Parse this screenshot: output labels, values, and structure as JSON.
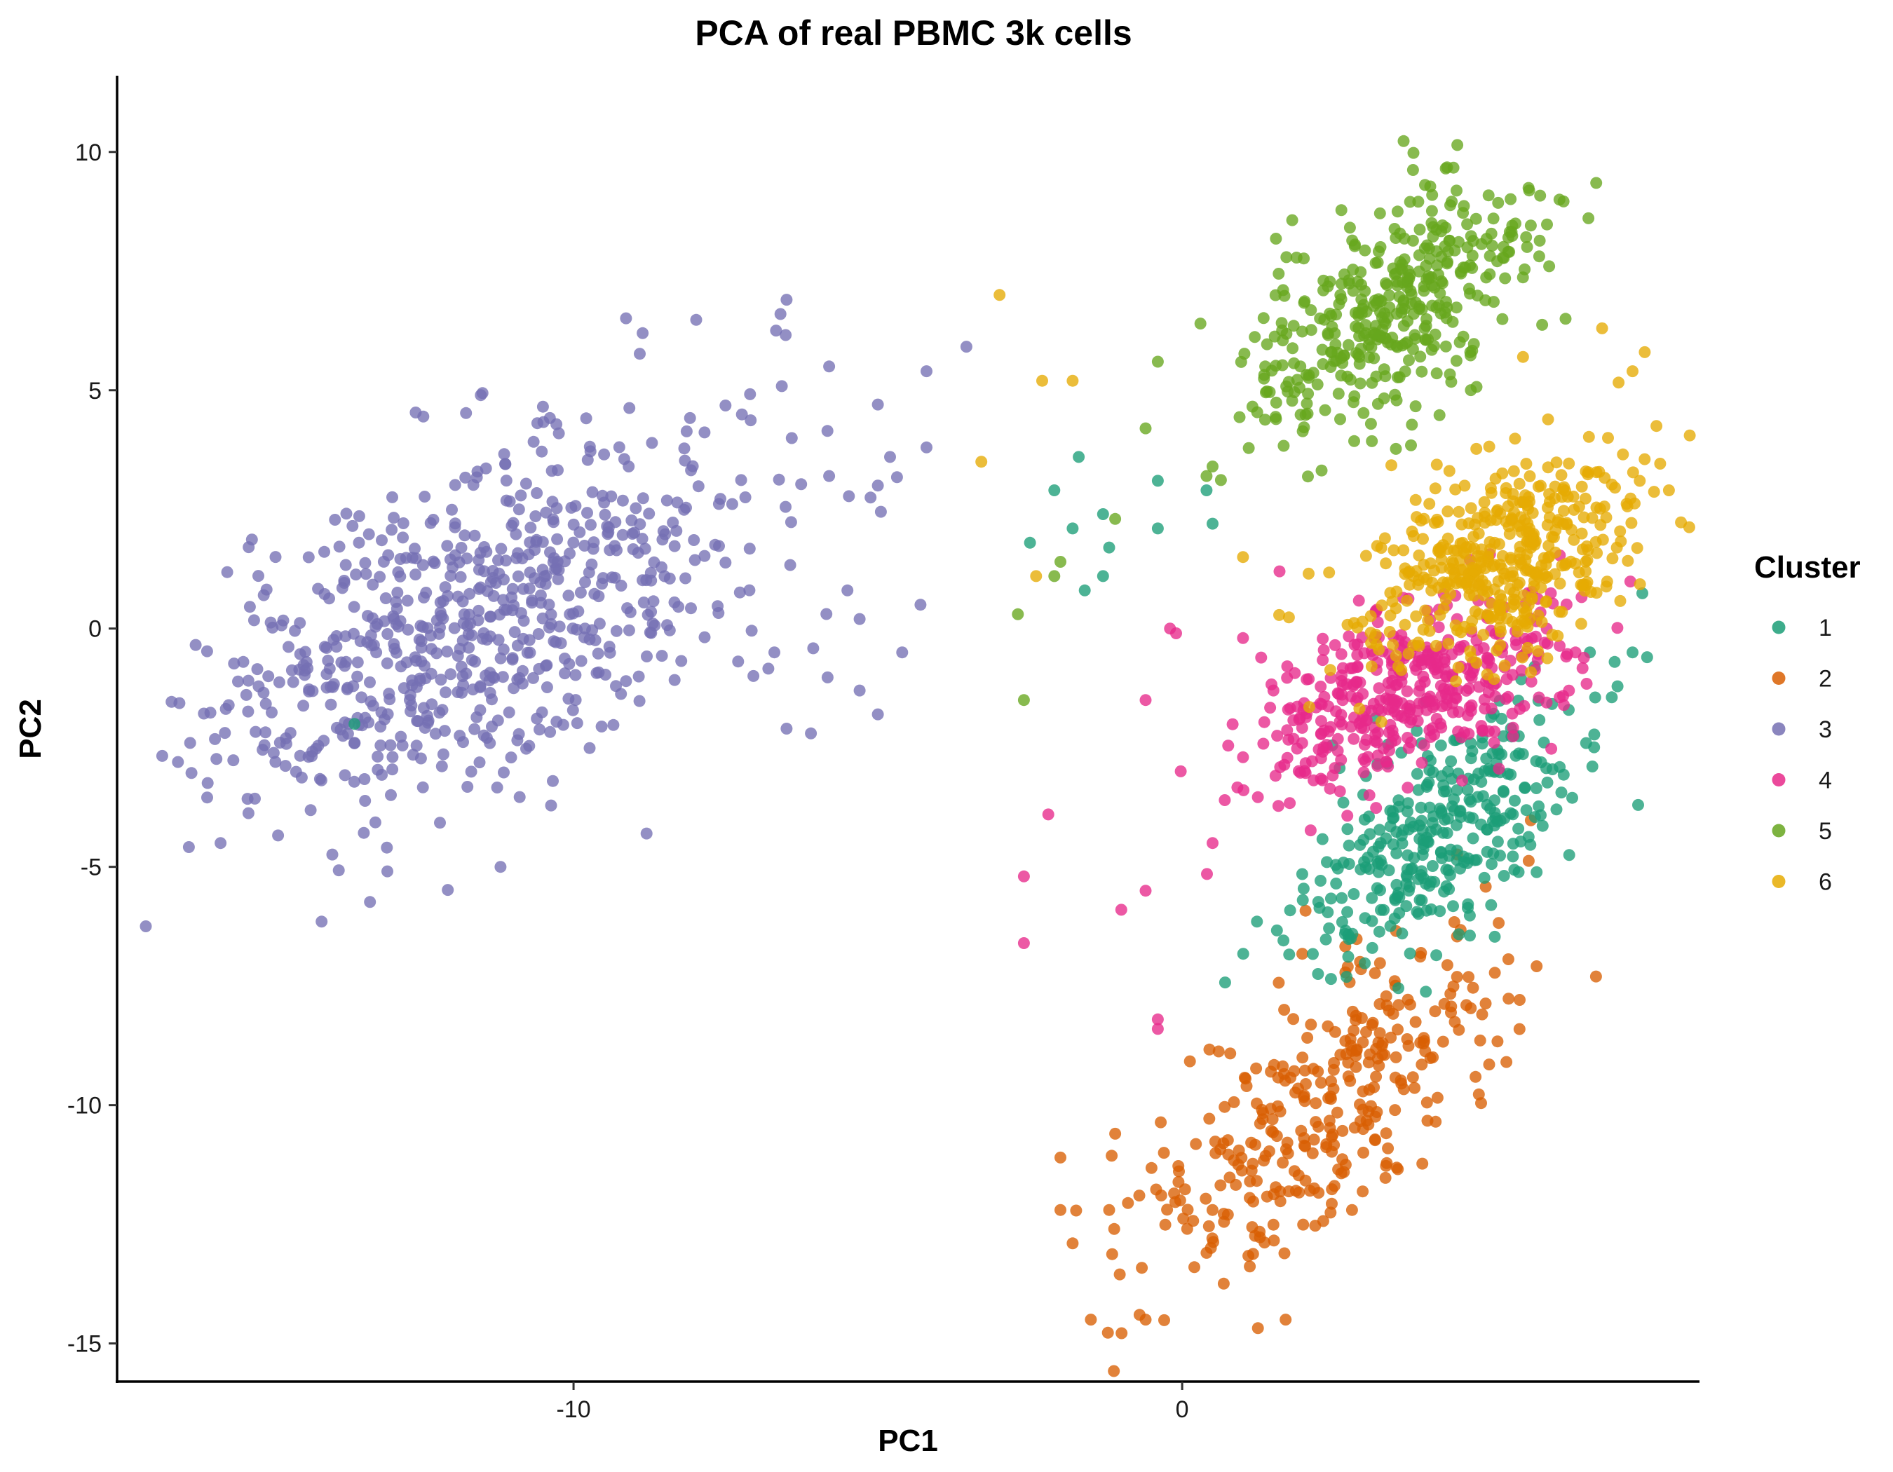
{
  "chart_data": {
    "type": "scatter",
    "title": "PCA of real PBMC 3k cells",
    "xlabel": "PC1",
    "ylabel": "PC2",
    "xlim": [
      -17.5,
      8.5
    ],
    "ylim": [
      -15.8,
      11.6
    ],
    "x_ticks": [
      -10,
      0
    ],
    "y_ticks": [
      10,
      5,
      0,
      -5,
      -10,
      -15
    ],
    "grid": false,
    "legend": {
      "title": "Cluster",
      "position": "right"
    },
    "series": [
      {
        "name": "1",
        "color": "#1b9e77",
        "n": 340,
        "center": [
          4.3,
          -4.2
        ],
        "sd": [
          1.1,
          1.4
        ],
        "rho": 0.55,
        "extra_points": [
          [
            -1.7,
            3.6
          ],
          [
            -2.1,
            2.9
          ],
          [
            -1.8,
            2.1
          ],
          [
            -1.3,
            2.4
          ],
          [
            -0.4,
            3.1
          ],
          [
            -0.4,
            2.1
          ],
          [
            0.5,
            2.2
          ],
          [
            0.4,
            2.9
          ],
          [
            -2.5,
            1.8
          ],
          [
            -1.6,
            0.8
          ],
          [
            -1.2,
            1.7
          ],
          [
            -1.3,
            1.1
          ],
          [
            6.7,
            -0.5
          ],
          [
            7.4,
            -0.5
          ],
          [
            -13.6,
            -2.0
          ]
        ]
      },
      {
        "name": "2",
        "color": "#d95f02",
        "n": 330,
        "center": [
          2.4,
          -9.9
        ],
        "sd": [
          1.5,
          1.9
        ],
        "rho": 0.72,
        "extra_points": [
          [
            -1.5,
            -14.5
          ],
          [
            -0.7,
            -14.4
          ],
          [
            -0.6,
            -14.5
          ],
          [
            1.7,
            -14.5
          ],
          [
            -1.8,
            -12.9
          ],
          [
            -1.2,
            -12.2
          ],
          [
            -2.0,
            -12.2
          ],
          [
            -2.0,
            -11.1
          ],
          [
            -1.1,
            -10.6
          ],
          [
            -0.3,
            -11.0
          ],
          [
            6.8,
            -7.3
          ],
          [
            0.2,
            -13.4
          ],
          [
            0.4,
            -13.1
          ]
        ]
      },
      {
        "name": "3",
        "color": "#7570b3",
        "n": 700,
        "center": [
          -11.5,
          0.2
        ],
        "sd": [
          2.3,
          2.1
        ],
        "rho": 0.55,
        "extra_points": [
          [
            -6.5,
            6.9
          ],
          [
            -6.6,
            6.6
          ],
          [
            -4.2,
            5.4
          ],
          [
            -4.2,
            3.8
          ],
          [
            -5.0,
            4.7
          ],
          [
            -4.8,
            3.6
          ],
          [
            -5.8,
            5.5
          ],
          [
            -16.5,
            -2.8
          ],
          [
            -16.3,
            -2.4
          ],
          [
            -15.8,
            -4.5
          ],
          [
            -5.0,
            3.0
          ],
          [
            -5.8,
            3.2
          ],
          [
            -5.5,
            0.8
          ],
          [
            -5.3,
            0.2
          ],
          [
            -5.3,
            -1.3
          ],
          [
            -6.5,
            -2.1
          ],
          [
            -6.1,
            -2.2
          ],
          [
            -4.6,
            -0.5
          ],
          [
            -5.0,
            -1.8
          ],
          [
            -6.7,
            -0.5
          ],
          [
            -4.3,
            0.5
          ],
          [
            -11.2,
            -5.0
          ],
          [
            -8.8,
            -4.3
          ]
        ]
      },
      {
        "name": "4",
        "color": "#e7298a",
        "n": 420,
        "center": [
          3.8,
          -1.3
        ],
        "sd": [
          1.3,
          1.0
        ],
        "rho": 0.5,
        "extra_points": [
          [
            -2.6,
            -5.2
          ],
          [
            -2.6,
            -6.6
          ],
          [
            -2.2,
            -3.9
          ],
          [
            -1.0,
            -5.9
          ],
          [
            -0.6,
            -5.5
          ],
          [
            -0.6,
            -1.5
          ],
          [
            -0.1,
            -0.1
          ],
          [
            -0.2,
            -0.0
          ],
          [
            -0.4,
            -8.2
          ],
          [
            -0.4,
            -8.4
          ],
          [
            0.5,
            -4.5
          ],
          [
            1.5,
            -1.3
          ],
          [
            1.6,
            1.2
          ],
          [
            1.0,
            -0.2
          ],
          [
            1.0,
            -2.7
          ],
          [
            0.7,
            -3.6
          ]
        ]
      },
      {
        "name": "5",
        "color": "#66a61e",
        "n": 400,
        "center": [
          3.5,
          6.8
        ],
        "sd": [
          1.1,
          1.3
        ],
        "rho": 0.5,
        "extra_points": [
          [
            0.3,
            6.4
          ],
          [
            -0.4,
            5.6
          ],
          [
            -0.6,
            4.2
          ],
          [
            -2.0,
            1.4
          ],
          [
            -2.1,
            1.1
          ],
          [
            -1.1,
            2.3
          ],
          [
            -2.7,
            0.3
          ],
          [
            -2.6,
            -1.5
          ],
          [
            0.5,
            3.4
          ],
          [
            0.4,
            3.2
          ],
          [
            6.2,
            9.0
          ],
          [
            6.3,
            6.5
          ]
        ]
      },
      {
        "name": "6",
        "color": "#e6ab02",
        "n": 450,
        "center": [
          5.3,
          1.5
        ],
        "sd": [
          1.1,
          1.2
        ],
        "rho": 0.45,
        "extra_points": [
          [
            -3.0,
            7.0
          ],
          [
            -2.3,
            5.2
          ],
          [
            -1.8,
            5.2
          ],
          [
            -3.3,
            3.5
          ],
          [
            -2.4,
            1.1
          ],
          [
            7.4,
            5.4
          ],
          [
            7.6,
            5.8
          ],
          [
            6.9,
            6.3
          ],
          [
            5.6,
            5.7
          ],
          [
            1.0,
            1.5
          ]
        ]
      }
    ]
  }
}
